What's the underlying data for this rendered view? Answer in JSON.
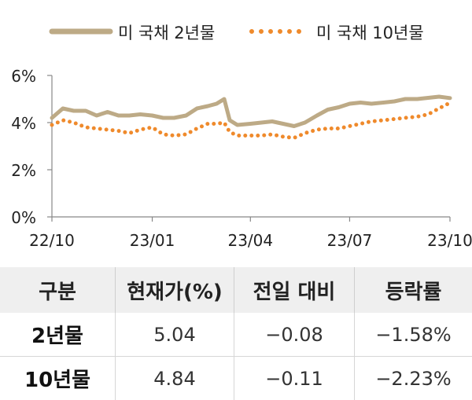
{
  "chart_data": {
    "type": "line",
    "legend": {
      "placement": "top",
      "entries": [
        "미 국채 2년물",
        "미 국채 10년물"
      ]
    },
    "x_ticks": [
      "22/10",
      "23/01",
      "23/04",
      "23/07",
      "23/10"
    ],
    "y_ticks": [
      "0%",
      "2%",
      "4%",
      "6%"
    ],
    "ylim": [
      0,
      6
    ],
    "xlim": [
      "2022-10-01",
      "2023-10-01"
    ],
    "grid": false,
    "series": [
      {
        "name": "미 국채 2년물",
        "color": "#bdaa86",
        "style": "solid",
        "x": [
          "2022-10-01",
          "2022-10-11",
          "2022-10-21",
          "2022-11-01",
          "2022-11-11",
          "2022-11-21",
          "2022-12-01",
          "2022-12-11",
          "2022-12-21",
          "2023-01-01",
          "2023-01-11",
          "2023-01-21",
          "2023-02-01",
          "2023-02-11",
          "2023-02-21",
          "2023-03-01",
          "2023-03-08",
          "2023-03-13",
          "2023-03-20",
          "2023-04-01",
          "2023-04-11",
          "2023-04-21",
          "2023-05-01",
          "2023-05-11",
          "2023-05-21",
          "2023-06-01",
          "2023-06-11",
          "2023-06-21",
          "2023-07-01",
          "2023-07-11",
          "2023-07-21",
          "2023-08-01",
          "2023-08-11",
          "2023-08-21",
          "2023-09-01",
          "2023-09-11",
          "2023-09-21",
          "2023-10-01"
        ],
        "y": [
          4.2,
          4.6,
          4.5,
          4.5,
          4.3,
          4.45,
          4.3,
          4.3,
          4.35,
          4.3,
          4.2,
          4.2,
          4.3,
          4.6,
          4.7,
          4.8,
          5.0,
          4.1,
          3.9,
          3.95,
          4.0,
          4.05,
          3.95,
          3.85,
          4.0,
          4.3,
          4.55,
          4.65,
          4.8,
          4.85,
          4.8,
          4.85,
          4.9,
          5.0,
          5.0,
          5.05,
          5.1,
          5.04
        ]
      },
      {
        "name": "미 국채 10년물",
        "color": "#ef8a2c",
        "style": "dotted",
        "x": [
          "2022-10-01",
          "2022-10-11",
          "2022-10-21",
          "2022-11-01",
          "2022-11-11",
          "2022-11-21",
          "2022-12-01",
          "2022-12-11",
          "2022-12-21",
          "2023-01-01",
          "2023-01-11",
          "2023-01-21",
          "2023-02-01",
          "2023-02-11",
          "2023-02-21",
          "2023-03-01",
          "2023-03-08",
          "2023-03-13",
          "2023-03-20",
          "2023-04-01",
          "2023-04-11",
          "2023-04-21",
          "2023-05-01",
          "2023-05-11",
          "2023-05-21",
          "2023-06-01",
          "2023-06-11",
          "2023-06-21",
          "2023-07-01",
          "2023-07-11",
          "2023-07-21",
          "2023-08-01",
          "2023-08-11",
          "2023-08-21",
          "2023-09-01",
          "2023-09-11",
          "2023-09-21",
          "2023-10-01"
        ],
        "y": [
          3.9,
          4.1,
          4.0,
          3.8,
          3.75,
          3.7,
          3.65,
          3.55,
          3.7,
          3.8,
          3.5,
          3.45,
          3.5,
          3.75,
          3.95,
          3.95,
          4.0,
          3.6,
          3.45,
          3.45,
          3.45,
          3.5,
          3.4,
          3.35,
          3.55,
          3.7,
          3.75,
          3.75,
          3.85,
          3.95,
          4.05,
          4.1,
          4.15,
          4.2,
          4.25,
          4.35,
          4.6,
          4.84
        ]
      }
    ]
  },
  "table": {
    "headers": [
      "구분",
      "현재가(%)",
      "전일 대비",
      "등락률"
    ],
    "rows": [
      {
        "label": "2년물",
        "current": "5.04",
        "change": "−0.08",
        "rate": "−1.58%"
      },
      {
        "label": "10년물",
        "current": "4.84",
        "change": "−0.11",
        "rate": "−2.23%"
      }
    ]
  }
}
